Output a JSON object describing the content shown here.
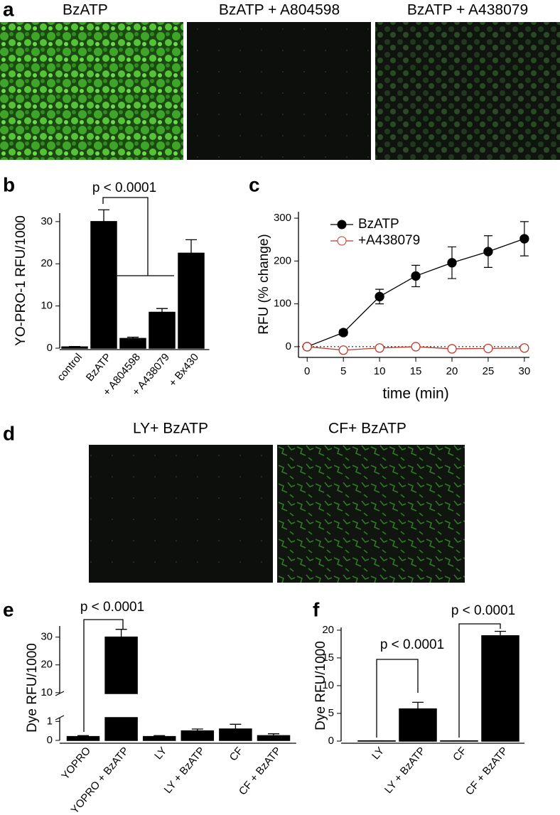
{
  "panel_a": {
    "label": "a",
    "captions": [
      "BzATP",
      "BzATP + A804598",
      "BzATP + A438079"
    ]
  },
  "panel_d": {
    "label": "d",
    "captions": [
      "LY+ BzATP",
      "CF+ BzATP"
    ]
  },
  "chart_data": [
    {
      "type": "bar",
      "label": "b",
      "y_label": "YO-PRO-1 RFU/1000",
      "categories": [
        "control",
        "BzATP",
        "+ A804598",
        "+ A438079",
        "+ Bx430"
      ],
      "values": [
        0.3,
        30,
        2.3,
        8.5,
        22.5
      ],
      "errors": [
        0.1,
        2.8,
        0.3,
        0.9,
        3.2
      ],
      "color": "#000000",
      "ylim": [
        0,
        32
      ],
      "yticks": [
        0,
        10,
        20,
        30
      ],
      "annotations": [
        "p < 0.0001"
      ]
    },
    {
      "type": "line",
      "label": "c",
      "x_label": "time (min)",
      "y_label": "RFU (% change)",
      "x": [
        0,
        5,
        10,
        15,
        20,
        25,
        30
      ],
      "series": [
        {
          "name": "BzATP",
          "color": "#000000",
          "marker": "filled",
          "values": [
            0,
            33,
            117,
            165,
            196,
            222,
            252
          ],
          "errors": [
            5,
            6,
            17,
            25,
            37,
            37,
            40
          ]
        },
        {
          "name": "+A438079",
          "color": "#c0392b",
          "marker": "open",
          "values": [
            0,
            -8,
            -3,
            0,
            -5,
            -4,
            -3
          ],
          "errors": [
            3,
            3,
            3,
            3,
            3,
            3,
            3
          ]
        }
      ],
      "xlim": [
        -1.2,
        30.7
      ],
      "ylim": [
        -25,
        315
      ],
      "xticks": [
        0,
        5,
        10,
        15,
        20,
        25,
        30
      ],
      "yticks": [
        0,
        100,
        200,
        300
      ],
      "zero_line": true
    },
    {
      "type": "bar",
      "label": "e",
      "y_label": "Dye RFU/1000",
      "categories": [
        "YOPRO",
        "YOPRO + BzATP",
        "LY",
        "LY + BzATP",
        "CF",
        "CF + BzATP"
      ],
      "values": [
        0.2,
        30,
        0.2,
        0.5,
        0.6,
        0.25
      ],
      "errors": [
        0.05,
        2.8,
        0.05,
        0.1,
        0.25,
        0.1
      ],
      "color": "#000000",
      "ylim": [
        0,
        34
      ],
      "axis_break": [
        1.2,
        9.7
      ],
      "yticks": [
        0,
        1,
        10,
        20,
        30
      ],
      "annotations": [
        "p < 0.0001"
      ]
    },
    {
      "type": "bar",
      "label": "f",
      "y_label": "Dye RFU/1000",
      "categories": [
        "LY",
        "LY + BzATP",
        "CF",
        "CF + BzATP"
      ],
      "values": [
        0.05,
        5.8,
        0.05,
        19
      ],
      "errors": [
        0,
        1.2,
        0,
        0.8
      ],
      "color": "#000000",
      "ylim": [
        0,
        20.5
      ],
      "yticks": [
        0,
        5,
        10,
        15,
        20
      ],
      "annotations": [
        "p < 0.0001",
        "p < 0.0001"
      ]
    }
  ]
}
